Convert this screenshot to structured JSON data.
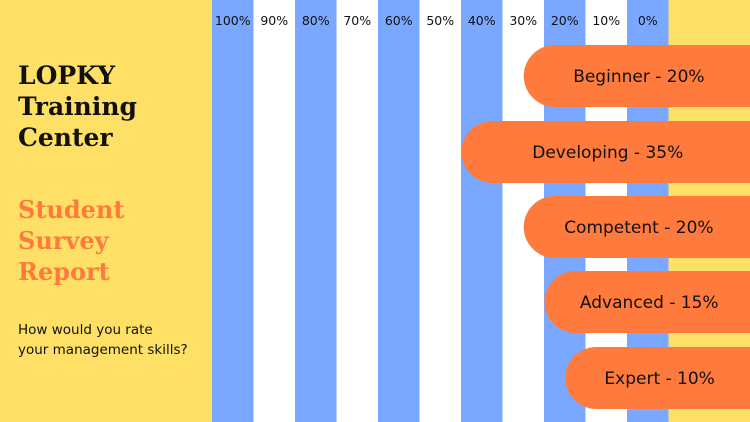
{
  "header": {
    "org_title": "LOPKY\nTraining\nCenter",
    "report_title": "Student\nSurvey\nReport",
    "question": "How would you rate\nyour management skills?"
  },
  "colors": {
    "background": "#FFE066",
    "stripe_blue": "#7AA7FF",
    "stripe_white": "#FFFFFF",
    "bar": "#FF7A3D",
    "text_dark": "#111111"
  },
  "chart_data": {
    "type": "bar",
    "orientation": "horizontal",
    "direction": "right-to-left",
    "axis_labels": [
      "100%",
      "90%",
      "80%",
      "70%",
      "60%",
      "50%",
      "40%",
      "30%",
      "20%",
      "10%",
      "0%"
    ],
    "xlim": [
      0,
      100
    ],
    "categories": [
      "Beginner",
      "Developing",
      "Competent",
      "Advanced",
      "Expert"
    ],
    "values": [
      20,
      35,
      20,
      15,
      10
    ],
    "labels": [
      "Beginner - 20%",
      "Developing - 35%",
      "Competent - 20%",
      "Advanced - 15%",
      "Expert - 10%"
    ]
  }
}
